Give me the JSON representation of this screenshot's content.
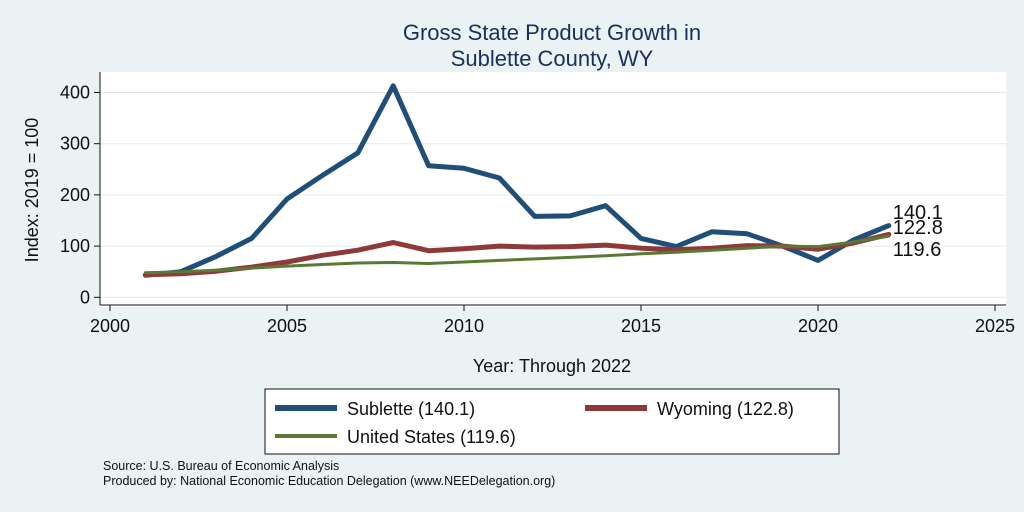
{
  "chart_data": {
    "type": "line",
    "title_lines": [
      "Gross State Product Growth in",
      "Sublette County, WY"
    ],
    "xlabel": "Year: Through 2022",
    "ylabel": "Index: 2019 = 100",
    "xlim": [
      2000,
      2025
    ],
    "ylim": [
      -15,
      440
    ],
    "xticks": [
      2000,
      2005,
      2010,
      2015,
      2020,
      2025
    ],
    "yticks": [
      0,
      100,
      200,
      300,
      400
    ],
    "grid": true,
    "x": [
      2001,
      2002,
      2003,
      2004,
      2005,
      2006,
      2007,
      2008,
      2009,
      2010,
      2011,
      2012,
      2013,
      2014,
      2015,
      2016,
      2017,
      2018,
      2019,
      2020,
      2021,
      2022
    ],
    "series": [
      {
        "name": "Sublette",
        "legend_label": "Sublette  (140.1)",
        "end_label": "140.1",
        "color": "#1f4e79",
        "values": [
          43,
          50,
          80,
          115,
          192,
          238,
          282,
          413,
          257,
          252,
          233,
          158,
          159,
          179,
          115,
          99,
          128,
          124,
          100,
          72,
          112,
          140.1
        ]
      },
      {
        "name": "Wyoming",
        "legend_label": "Wyoming (122.8)",
        "end_label": "122.8",
        "color": "#8e3a3a",
        "values": [
          44,
          46,
          51,
          59,
          69,
          82,
          92,
          107,
          91,
          95,
          100,
          98,
          99,
          102,
          96,
          93,
          96,
          101,
          100,
          94,
          106,
          122.8
        ]
      },
      {
        "name": "United States",
        "legend_label": "United States (119.6)",
        "end_label": "119.6",
        "color": "#5a7a34",
        "values": [
          48,
          50,
          53,
          57,
          61,
          64,
          67,
          68,
          66,
          69,
          72,
          75,
          78,
          81,
          85,
          88,
          92,
          96,
          100,
          99,
          108,
          119.6
        ]
      }
    ]
  },
  "footer": {
    "source": "Source: U.S. Bureau of Economic Analysis",
    "produced_by": "Produced by: National Economic Education Delegation (www.NEEDelegation.org)"
  }
}
